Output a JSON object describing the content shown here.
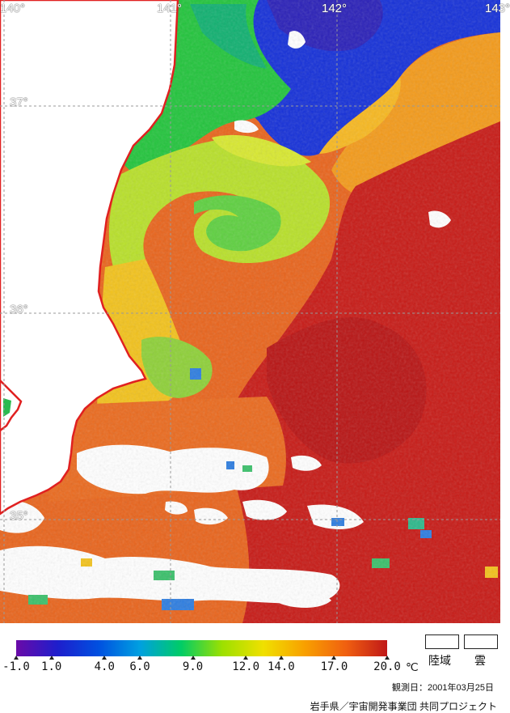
{
  "map": {
    "lon_labels": [
      "140°",
      "141°",
      "142°",
      "143°"
    ],
    "lat_labels": [
      "37°",
      "36°",
      "35°"
    ]
  },
  "legend": {
    "ticks": [
      "-1.0",
      "1.0",
      "4.0",
      "6.0",
      "9.0",
      "12.0",
      "14.0",
      "17.0",
      "20.0"
    ],
    "tick_values": [
      -1.0,
      1.0,
      4.0,
      6.0,
      9.0,
      12.0,
      14.0,
      17.0,
      20.0
    ],
    "range": [
      -1.0,
      20.0
    ],
    "unit": "℃",
    "color_stops": [
      "#6a0aa8",
      "#1e1ecc",
      "#0050e0",
      "#00a0e0",
      "#00cc66",
      "#9de000",
      "#f0e000",
      "#f8a000",
      "#f06010",
      "#c01818"
    ],
    "land_label": "陸域",
    "cloud_label": "雲"
  },
  "footer": {
    "observation_date": "観測日：2001年03月25日",
    "credit": "岩手県／宇宙開発事業団 共同プロジェクト"
  },
  "colors": {
    "coastline": "#e02020",
    "land": "#ffffff",
    "cloud": "#ffffff",
    "grid": "#9a9a9a"
  }
}
